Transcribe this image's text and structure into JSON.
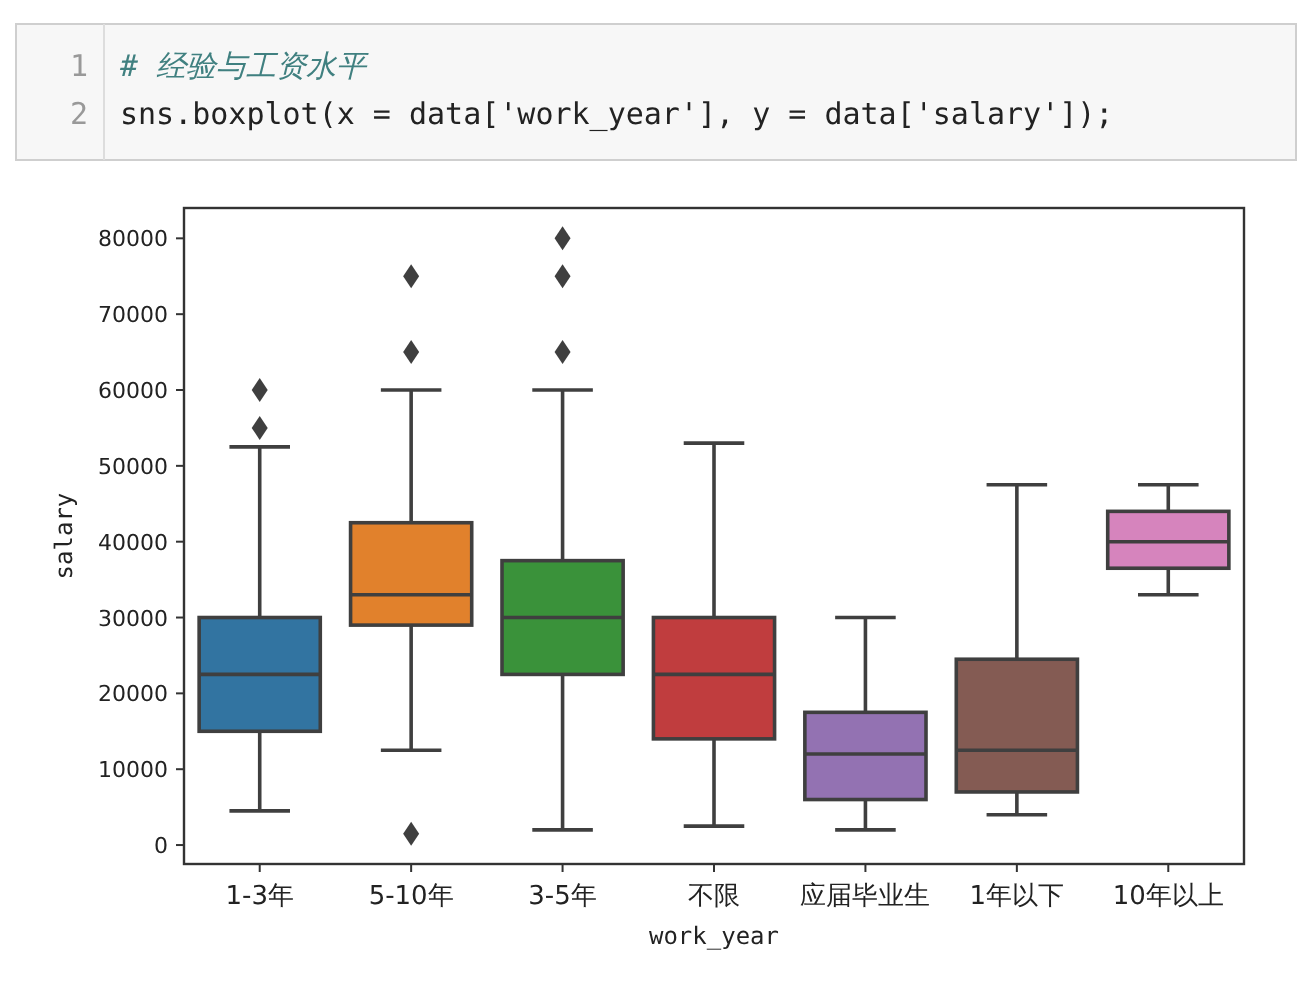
{
  "chart_data": {
    "type": "box",
    "annotations": [
      "1",
      "# 经验与工资水平",
      "2",
      "sns.boxplot(x = data['work_year'], y = data['salary']);"
    ],
    "xlabel": "work_year",
    "ylabel": "salary",
    "categories": [
      "1-3年",
      "5-10年",
      "3-5年",
      "不限",
      "应届毕业生",
      "1年以下",
      "10年以上"
    ],
    "colors": [
      "#3274a1",
      "#e1812c",
      "#3a923a",
      "#c03d3e",
      "#9372b2",
      "#845b53",
      "#d684bd"
    ],
    "boxes": [
      {
        "low": 4500,
        "q1": 15000,
        "median": 22500,
        "q3": 30000,
        "high": 52500,
        "outliers": [
          55000,
          60000
        ]
      },
      {
        "low": 12500,
        "q1": 29000,
        "median": 33000,
        "q3": 42500,
        "high": 60000,
        "outliers": [
          1500,
          65000,
          75000
        ]
      },
      {
        "low": 2000,
        "q1": 22500,
        "median": 30000,
        "q3": 37500,
        "high": 60000,
        "outliers": [
          65000,
          75000,
          80000
        ]
      },
      {
        "low": 2500,
        "q1": 14000,
        "median": 22500,
        "q3": 30000,
        "high": 53000
      },
      {
        "low": 2000,
        "q1": 6000,
        "median": 12000,
        "q3": 17500,
        "high": 30000
      },
      {
        "low": 4000,
        "q1": 7000,
        "median": 12500,
        "q3": 24500,
        "high": 47500
      },
      {
        "low": 33000,
        "q1": 36500,
        "median": 40000,
        "q3": 44000,
        "high": 47500
      }
    ],
    "ylim": [
      -2500,
      84000
    ],
    "yticks": [
      0,
      10000,
      20000,
      30000,
      40000,
      50000,
      60000,
      70000,
      80000
    ],
    "grid": false
  }
}
